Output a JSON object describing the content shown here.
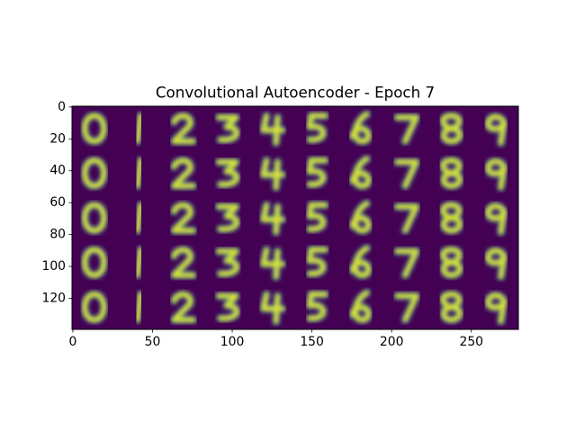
{
  "chart_data": {
    "type": "image",
    "title": "Convolutional Autoencoder - Epoch 7",
    "xlim": [
      -0.5,
      279.5
    ],
    "ylim": [
      139.5,
      -0.5
    ],
    "xticks": [
      0,
      50,
      100,
      150,
      200,
      250
    ],
    "yticks": [
      0,
      20,
      40,
      60,
      80,
      100,
      120
    ],
    "colormap": "viridis"
  }
}
